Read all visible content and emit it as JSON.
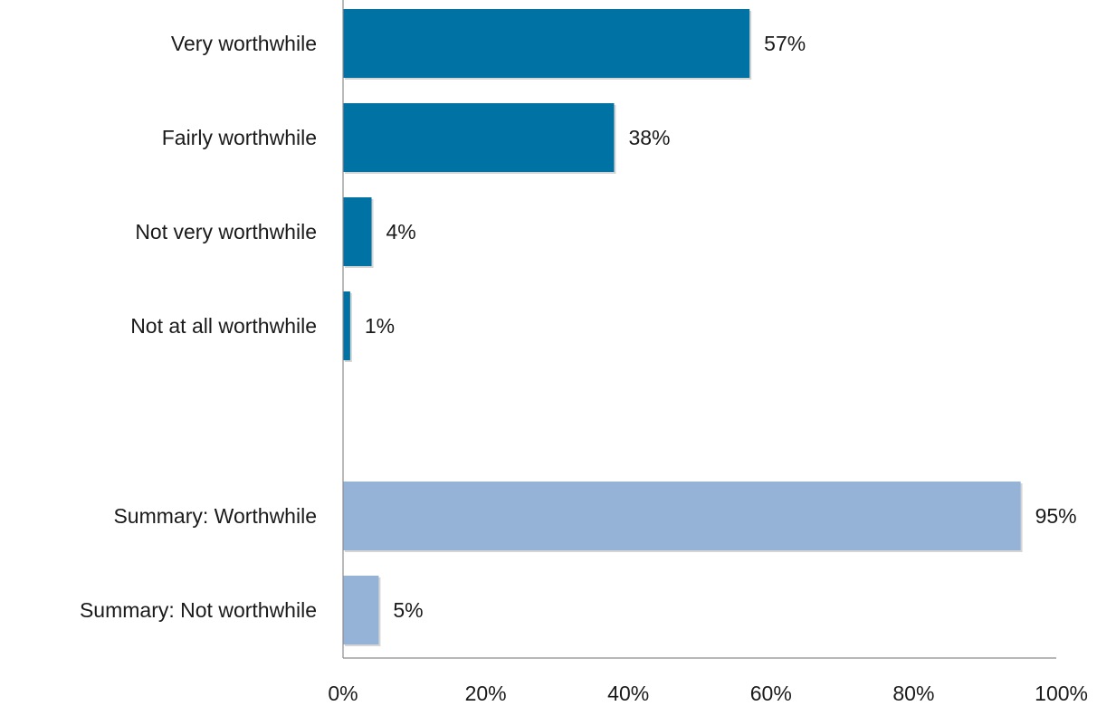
{
  "chart_data": {
    "type": "bar",
    "orientation": "horizontal",
    "title": "",
    "xlabel": "",
    "ylabel": "",
    "xlim": [
      0,
      100
    ],
    "x_ticks": [
      "0%",
      "20%",
      "40%",
      "60%",
      "80%",
      "100%"
    ],
    "grid": false,
    "legend": "none",
    "bars": [
      {
        "label": "Very worthwhile",
        "value": 57,
        "value_label": "57%",
        "group": "detail"
      },
      {
        "label": "Fairly worthwhile",
        "value": 38,
        "value_label": "38%",
        "group": "detail"
      },
      {
        "label": "Not very worthwhile",
        "value": 4,
        "value_label": "4%",
        "group": "detail"
      },
      {
        "label": "Not at all worthwhile",
        "value": 1,
        "value_label": "1%",
        "group": "detail"
      },
      {
        "label": "Summary: Worthwhile",
        "value": 95,
        "value_label": "95%",
        "group": "summary"
      },
      {
        "label": "Summary: Not worthwhile",
        "value": 5,
        "value_label": "5%",
        "group": "summary"
      }
    ],
    "colors": {
      "detail": "#0072a3",
      "summary": "#95b3d7"
    }
  }
}
